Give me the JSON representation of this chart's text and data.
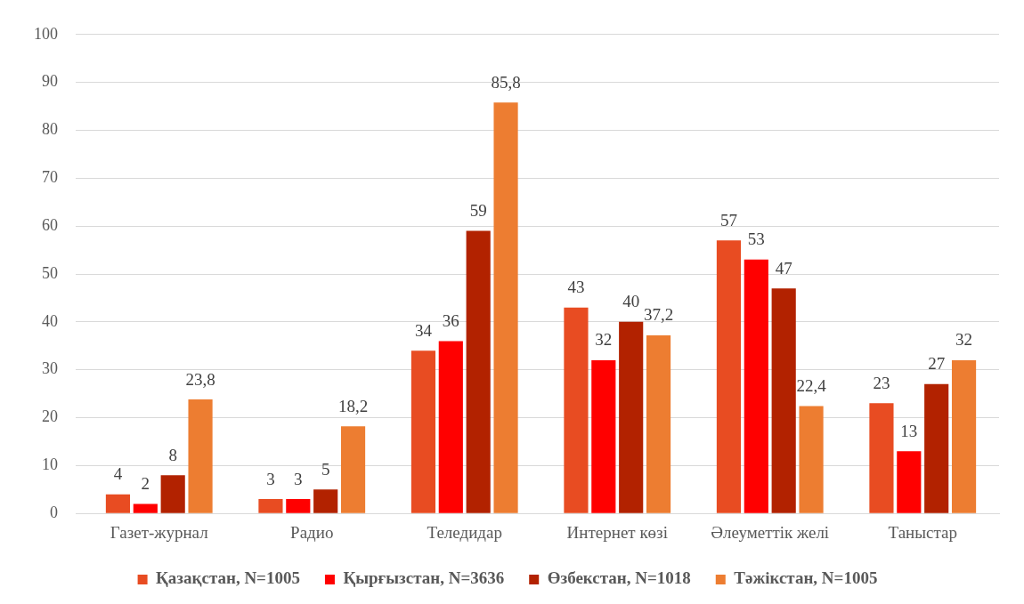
{
  "chart_data": {
    "type": "bar",
    "categories": [
      "Газет-журнал",
      "Радио",
      "Теледидар",
      "Интернет көзі",
      "Әлеуметтік желі",
      "Таныстар"
    ],
    "series": [
      {
        "name": "Қазақстан, N=1005",
        "color": "#e84c22",
        "values": [
          4,
          3,
          34,
          43,
          57,
          23
        ],
        "value_labels": [
          "4",
          "3",
          "34",
          "43",
          "57",
          "23"
        ]
      },
      {
        "name": "Қырғызстан, N=3636",
        "color": "#ff0000",
        "values": [
          2,
          3,
          36,
          32,
          53,
          13
        ],
        "value_labels": [
          "2",
          "3",
          "36",
          "32",
          "53",
          "13"
        ]
      },
      {
        "name": "Өзбекстан, N=1018",
        "color": "#b22200",
        "values": [
          8,
          5,
          59,
          40,
          47,
          27
        ],
        "value_labels": [
          "8",
          "5",
          "59",
          "40",
          "47",
          "27"
        ]
      },
      {
        "name": "Тәжікстан, N=1005",
        "color": "#ed7d31",
        "values": [
          23.8,
          18.2,
          85.8,
          37.2,
          22.4,
          32
        ],
        "value_labels": [
          "23,8",
          "18,2",
          "85,8",
          "37,2",
          "22,4",
          "32"
        ]
      }
    ],
    "ylim": [
      0,
      100
    ],
    "yticks": [
      0,
      10,
      20,
      30,
      40,
      50,
      60,
      70,
      80,
      90,
      100
    ],
    "grid": "y",
    "legend": "bottom"
  }
}
